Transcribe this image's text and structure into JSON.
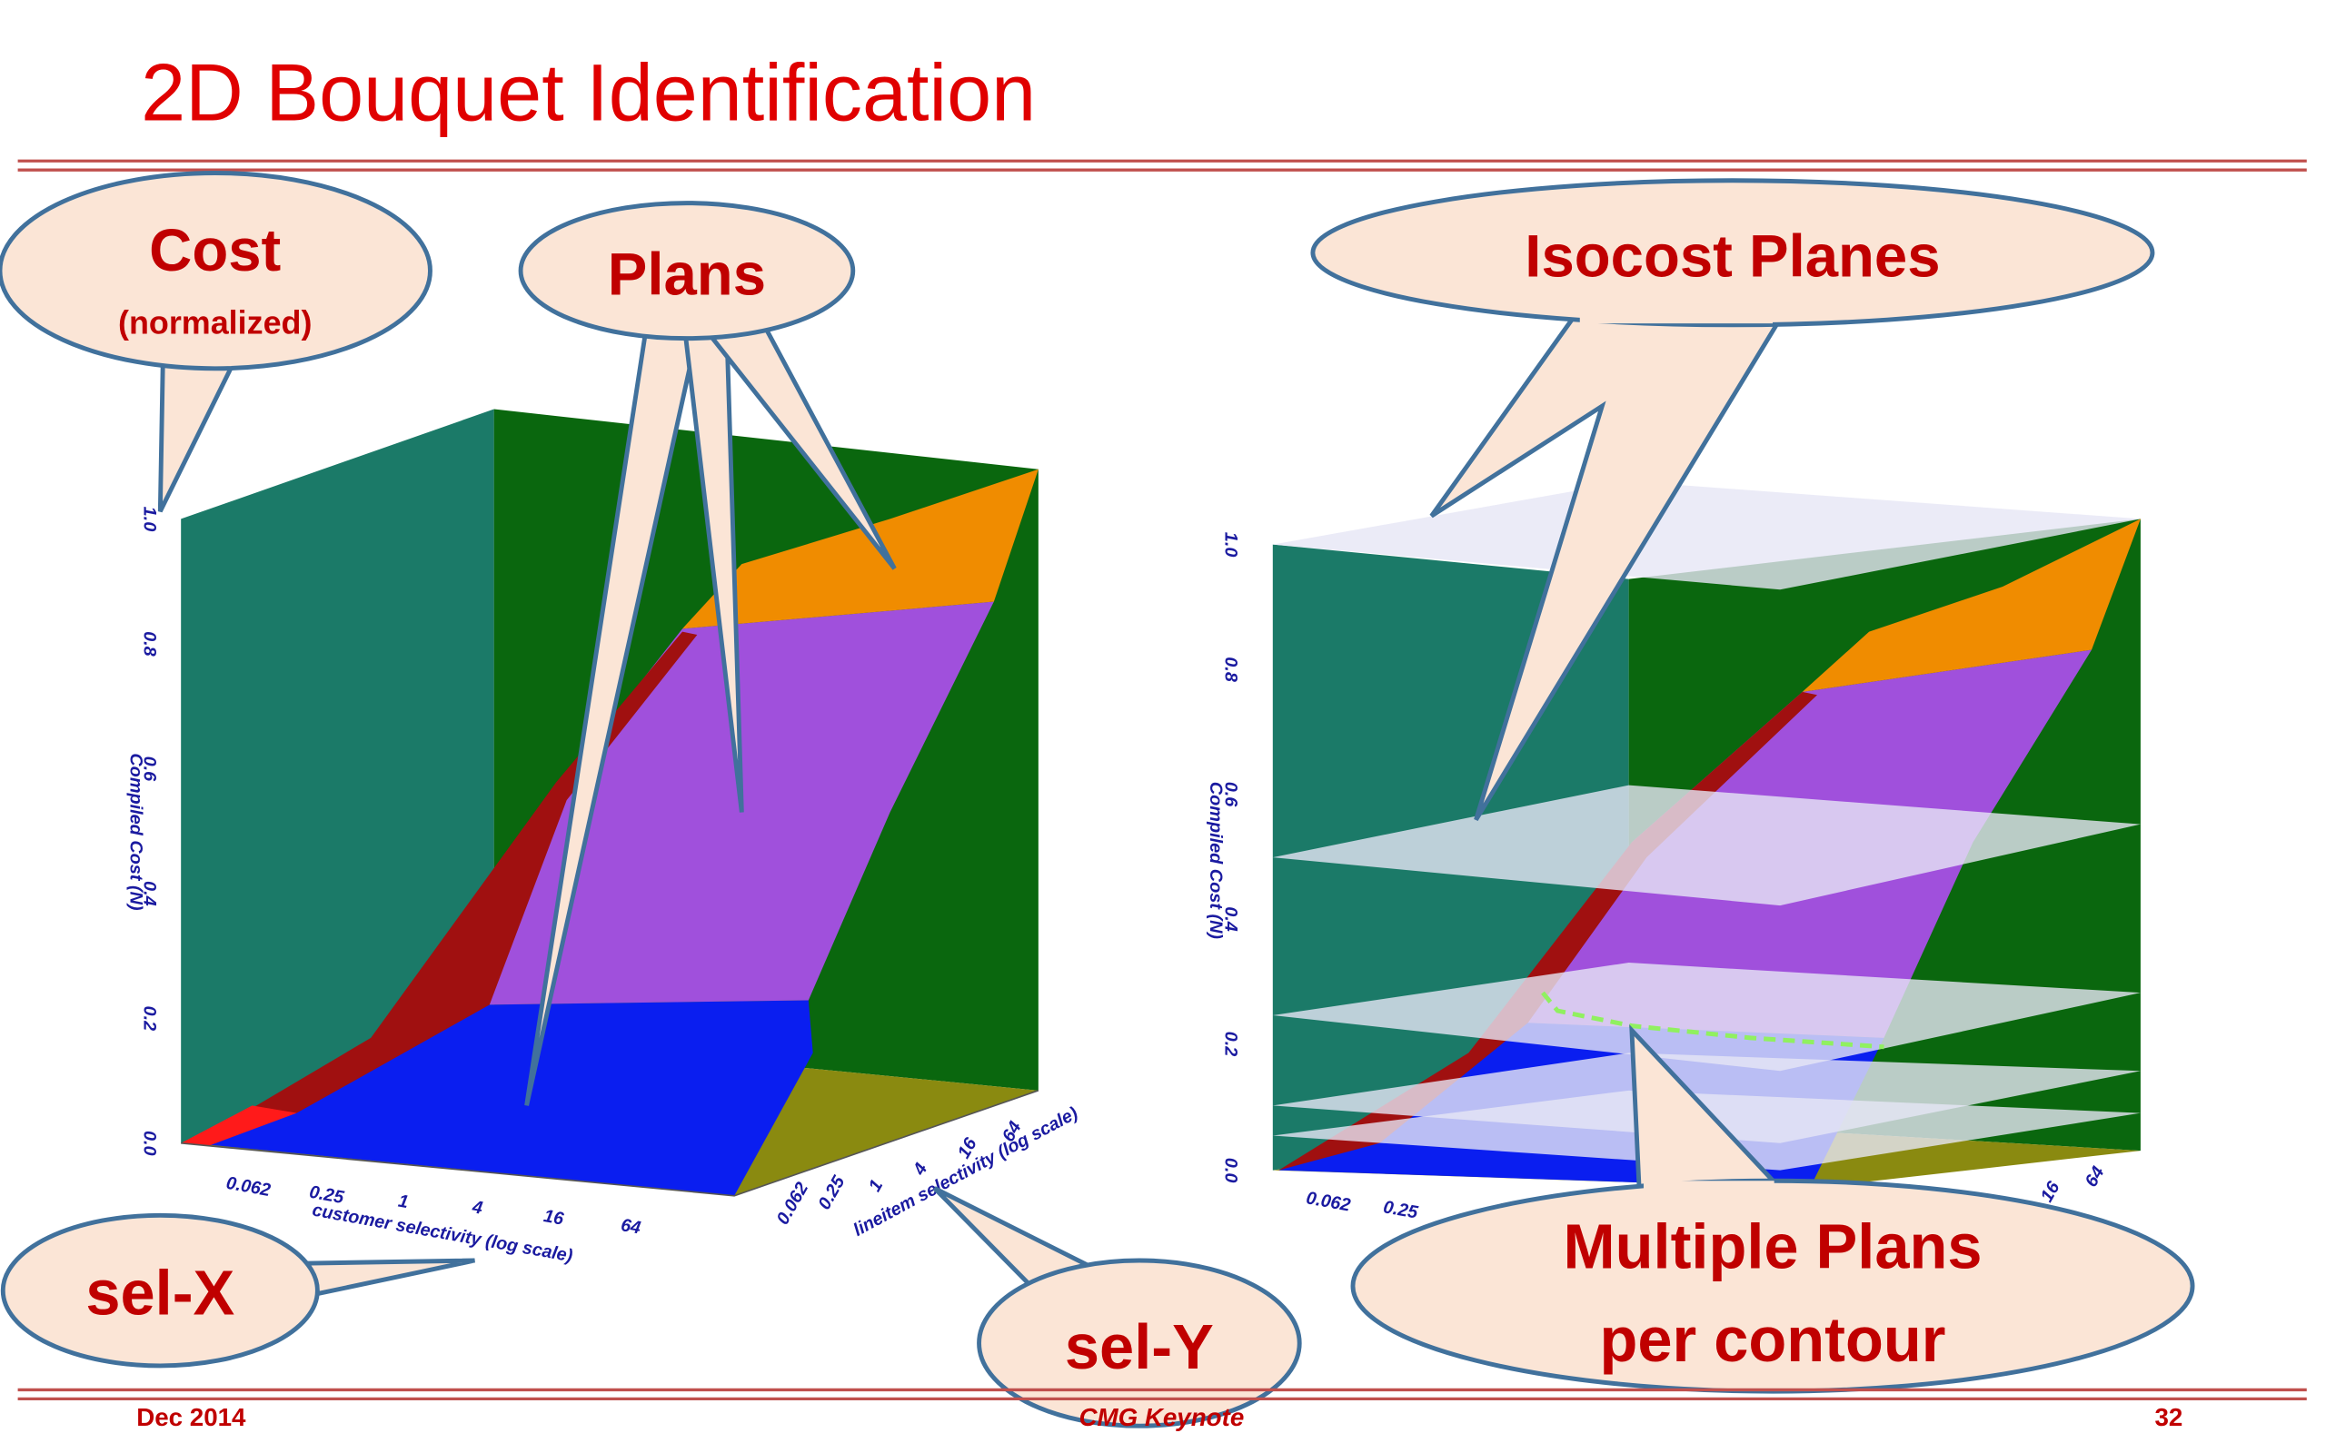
{
  "title": "2D Bouquet Identification",
  "callouts": {
    "cost": {
      "label": "Cost",
      "sub": "(normalized)"
    },
    "plans": "Plans",
    "isocost": "Isocost Planes",
    "sel_x": "sel-X",
    "sel_y": "sel-Y",
    "multiple": [
      "Multiple Plans",
      "per contour"
    ]
  },
  "plots": [
    {
      "y_axis_label": "Compiled Cost (N)",
      "y_ticks": [
        "1.0",
        "0.8",
        "0.6",
        "0.4",
        "0.2",
        "0.0"
      ],
      "x_axis_label": "customer selectivity (log scale)",
      "x_ticks": [
        "0.062",
        "0.25",
        "1",
        "4",
        "16",
        "64"
      ],
      "z_axis_label": "lineitem selectivity (log scale)",
      "z_ticks": [
        "0.062",
        "0.25",
        "1",
        "4",
        "16",
        "64"
      ]
    },
    {
      "y_axis_label": "Compiled Cost (N)",
      "y_ticks": [
        "1.0",
        "0.8",
        "0.6",
        "0.4",
        "0.2",
        "0.0"
      ],
      "x_ticks": [
        "0.062",
        "0.25"
      ],
      "z_ticks": [
        "16",
        "64"
      ]
    }
  ],
  "footer": {
    "date": "Dec 2014",
    "event": "CMG Keynote",
    "page": "32"
  }
}
